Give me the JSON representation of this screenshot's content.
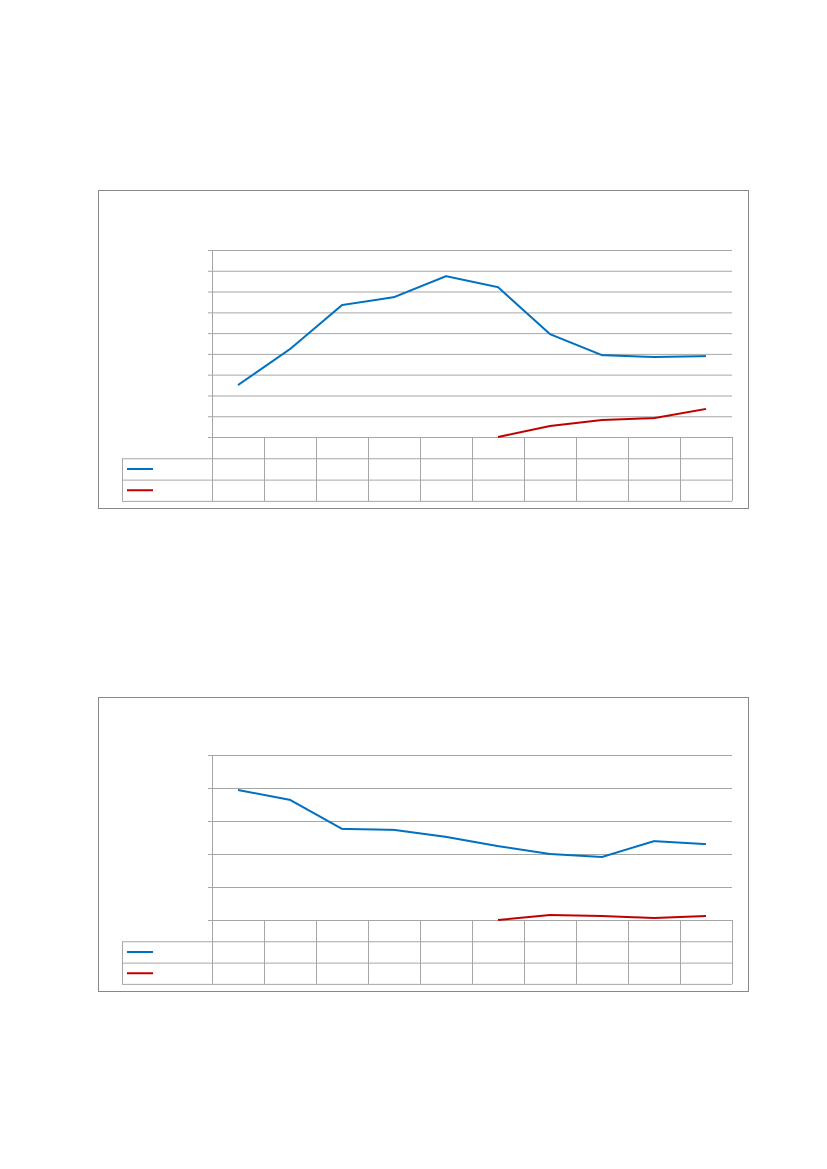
{
  "chart_data": [
    {
      "type": "line",
      "categories": [
        null,
        null,
        null,
        null,
        null,
        null,
        null,
        null,
        null,
        null
      ],
      "series": [
        {
          "color": "#0070c0",
          "values": [
            2.5,
            4.23,
            6.35,
            6.73,
            7.74,
            7.21,
            4.95,
            3.94,
            3.85,
            3.89
          ]
        },
        {
          "color": "#c00000",
          "values": [
            null,
            null,
            null,
            null,
            null,
            0,
            0.53,
            0.82,
            0.91,
            1.35
          ]
        }
      ],
      "ylim": [
        0,
        9
      ],
      "yticks": [
        0,
        1,
        2,
        3,
        4,
        5,
        6,
        7,
        8,
        9
      ],
      "grid": true
    },
    {
      "type": "line",
      "categories": [
        null,
        null,
        null,
        null,
        null,
        null,
        null,
        null,
        null,
        null
      ],
      "series": [
        {
          "color": "#0070c0",
          "values": [
            3.94,
            3.64,
            2.76,
            2.73,
            2.52,
            2.24,
            2.0,
            1.91,
            2.39,
            2.3
          ]
        },
        {
          "color": "#c00000",
          "values": [
            null,
            null,
            null,
            null,
            null,
            0,
            0.15,
            0.12,
            0.06,
            0.12
          ]
        }
      ],
      "ylim": [
        0,
        5
      ],
      "yticks": [
        0,
        1,
        2,
        3,
        4,
        5
      ],
      "grid": true
    }
  ]
}
